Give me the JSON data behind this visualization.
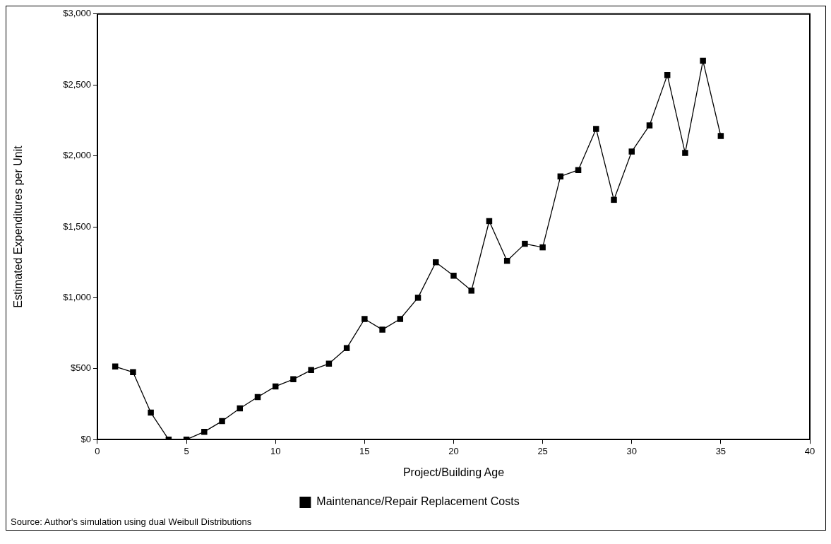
{
  "chart_data": {
    "type": "line",
    "xlabel": "Project/Building Age",
    "ylabel": "Estimated Expenditures per Unit",
    "x": [
      1,
      2,
      3,
      4,
      5,
      6,
      7,
      8,
      9,
      10,
      11,
      12,
      13,
      14,
      15,
      16,
      17,
      18,
      19,
      20,
      21,
      22,
      23,
      24,
      25,
      26,
      27,
      28,
      29,
      30,
      31,
      32,
      33,
      34,
      35
    ],
    "series": [
      {
        "name": "Maintenance/Repair Replacement Costs",
        "color": "#000000",
        "values": [
          515,
          475,
          190,
          0,
          0,
          55,
          130,
          220,
          300,
          375,
          425,
          490,
          535,
          645,
          850,
          775,
          850,
          1000,
          1250,
          1155,
          1050,
          1540,
          1260,
          1380,
          1355,
          1855,
          1900,
          2190,
          1690,
          2030,
          2215,
          2570,
          2020,
          2670,
          2140
        ]
      }
    ],
    "xlim": [
      0,
      40
    ],
    "xticks": [
      0,
      5,
      10,
      15,
      20,
      25,
      30,
      35,
      40
    ],
    "ylim": [
      0,
      3000
    ],
    "yticks": [
      {
        "value": 0,
        "label": "$0"
      },
      {
        "value": 500,
        "label": "$500"
      },
      {
        "value": 1000,
        "label": "$1,000"
      },
      {
        "value": 1500,
        "label": "$1,500"
      },
      {
        "value": 2000,
        "label": "$2,000"
      },
      {
        "value": 2500,
        "label": "$2,500"
      },
      {
        "value": 3000,
        "label": "$3,000"
      }
    ],
    "grid": false,
    "legend": "bottom",
    "marker": "square",
    "line_style": "solid",
    "annotations": [
      "Source:  Author's simulation using dual Weibull Distributions"
    ]
  }
}
